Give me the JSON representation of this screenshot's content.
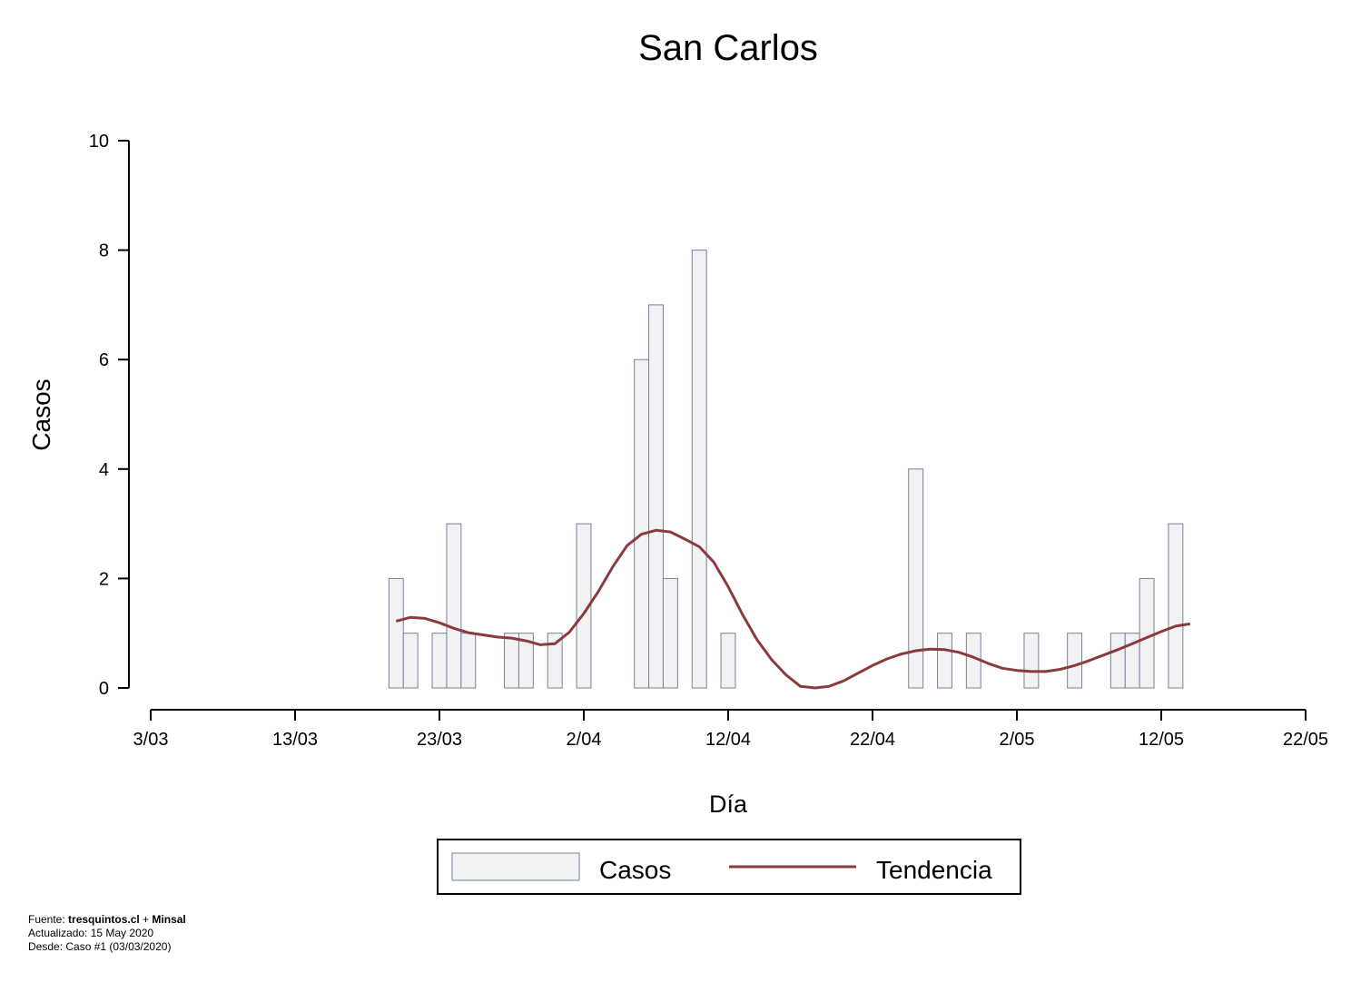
{
  "chart_data": {
    "type": "bar",
    "title": "San Carlos",
    "xlabel": "Día",
    "ylabel": "Casos",
    "ylim": [
      0,
      10
    ],
    "yticks": [
      "0",
      "2",
      "4",
      "6",
      "8",
      "10"
    ],
    "xlim": [
      "2020-03-03",
      "2020-05-22"
    ],
    "xticks": [
      {
        "date": "2020-03-03",
        "label": "3/03"
      },
      {
        "date": "2020-03-13",
        "label": "13/03"
      },
      {
        "date": "2020-03-23",
        "label": "23/03"
      },
      {
        "date": "2020-04-02",
        "label": "2/04"
      },
      {
        "date": "2020-04-12",
        "label": "12/04"
      },
      {
        "date": "2020-04-22",
        "label": "22/04"
      },
      {
        "date": "2020-05-02",
        "label": "2/05"
      },
      {
        "date": "2020-05-12",
        "label": "12/05"
      },
      {
        "date": "2020-05-22",
        "label": "22/05"
      }
    ],
    "legend": {
      "position": "bottom",
      "entries": [
        "Casos",
        "Tendencia"
      ]
    },
    "colors": {
      "bar_fill": "#f2f2f2",
      "bar_stroke": "#7282a0",
      "trend": "#8b3a3f"
    },
    "series": [
      {
        "name": "Casos",
        "type": "bar",
        "x": [
          "2020-03-20",
          "2020-03-21",
          "2020-03-23",
          "2020-03-24",
          "2020-03-25",
          "2020-03-28",
          "2020-03-29",
          "2020-03-31",
          "2020-04-02",
          "2020-04-06",
          "2020-04-07",
          "2020-04-08",
          "2020-04-10",
          "2020-04-12",
          "2020-04-25",
          "2020-04-27",
          "2020-04-29",
          "2020-05-03",
          "2020-05-06",
          "2020-05-09",
          "2020-05-10",
          "2020-05-11",
          "2020-05-13"
        ],
        "values": [
          2,
          1,
          1,
          3,
          1,
          1,
          1,
          1,
          3,
          6,
          7,
          2,
          8,
          1,
          4,
          1,
          1,
          1,
          1,
          1,
          1,
          2,
          3
        ]
      },
      {
        "name": "Tendencia",
        "type": "line",
        "x": [
          "2020-03-20",
          "2020-03-21",
          "2020-03-22",
          "2020-03-23",
          "2020-03-24",
          "2020-03-25",
          "2020-03-26",
          "2020-03-27",
          "2020-03-28",
          "2020-03-29",
          "2020-03-30",
          "2020-03-31",
          "2020-04-01",
          "2020-04-02",
          "2020-04-03",
          "2020-04-04",
          "2020-04-05",
          "2020-04-06",
          "2020-04-07",
          "2020-04-08",
          "2020-04-09",
          "2020-04-10",
          "2020-04-11",
          "2020-04-12",
          "2020-04-13",
          "2020-04-14",
          "2020-04-15",
          "2020-04-16",
          "2020-04-17",
          "2020-04-18",
          "2020-04-19",
          "2020-04-20",
          "2020-04-21",
          "2020-04-22",
          "2020-04-23",
          "2020-04-24",
          "2020-04-25",
          "2020-04-26",
          "2020-04-27",
          "2020-04-28",
          "2020-04-29",
          "2020-04-30",
          "2020-05-01",
          "2020-05-02",
          "2020-05-03",
          "2020-05-04",
          "2020-05-05",
          "2020-05-06",
          "2020-05-07",
          "2020-05-08",
          "2020-05-09",
          "2020-05-10",
          "2020-05-11",
          "2020-05-12",
          "2020-05-13",
          "2020-05-14"
        ],
        "values": [
          1.22,
          1.29,
          1.27,
          1.19,
          1.09,
          1.01,
          0.97,
          0.93,
          0.91,
          0.86,
          0.79,
          0.81,
          1.02,
          1.36,
          1.76,
          2.21,
          2.6,
          2.81,
          2.88,
          2.85,
          2.72,
          2.58,
          2.3,
          1.85,
          1.34,
          0.88,
          0.52,
          0.24,
          0.03,
          0.0,
          0.03,
          0.13,
          0.27,
          0.41,
          0.53,
          0.62,
          0.68,
          0.71,
          0.7,
          0.65,
          0.56,
          0.45,
          0.36,
          0.32,
          0.3,
          0.3,
          0.34,
          0.41,
          0.5,
          0.6,
          0.7,
          0.81,
          0.92,
          1.03,
          1.13,
          1.17
        ]
      }
    ]
  },
  "footer": {
    "source_prefix": "Fuente: ",
    "source_name": "tresquintos.cl",
    "source_join": " + ",
    "source_org": "Minsal",
    "updated": "Actualizado: 15 May 2020",
    "since": "Desde: Caso #1  (03/03/2020)"
  }
}
